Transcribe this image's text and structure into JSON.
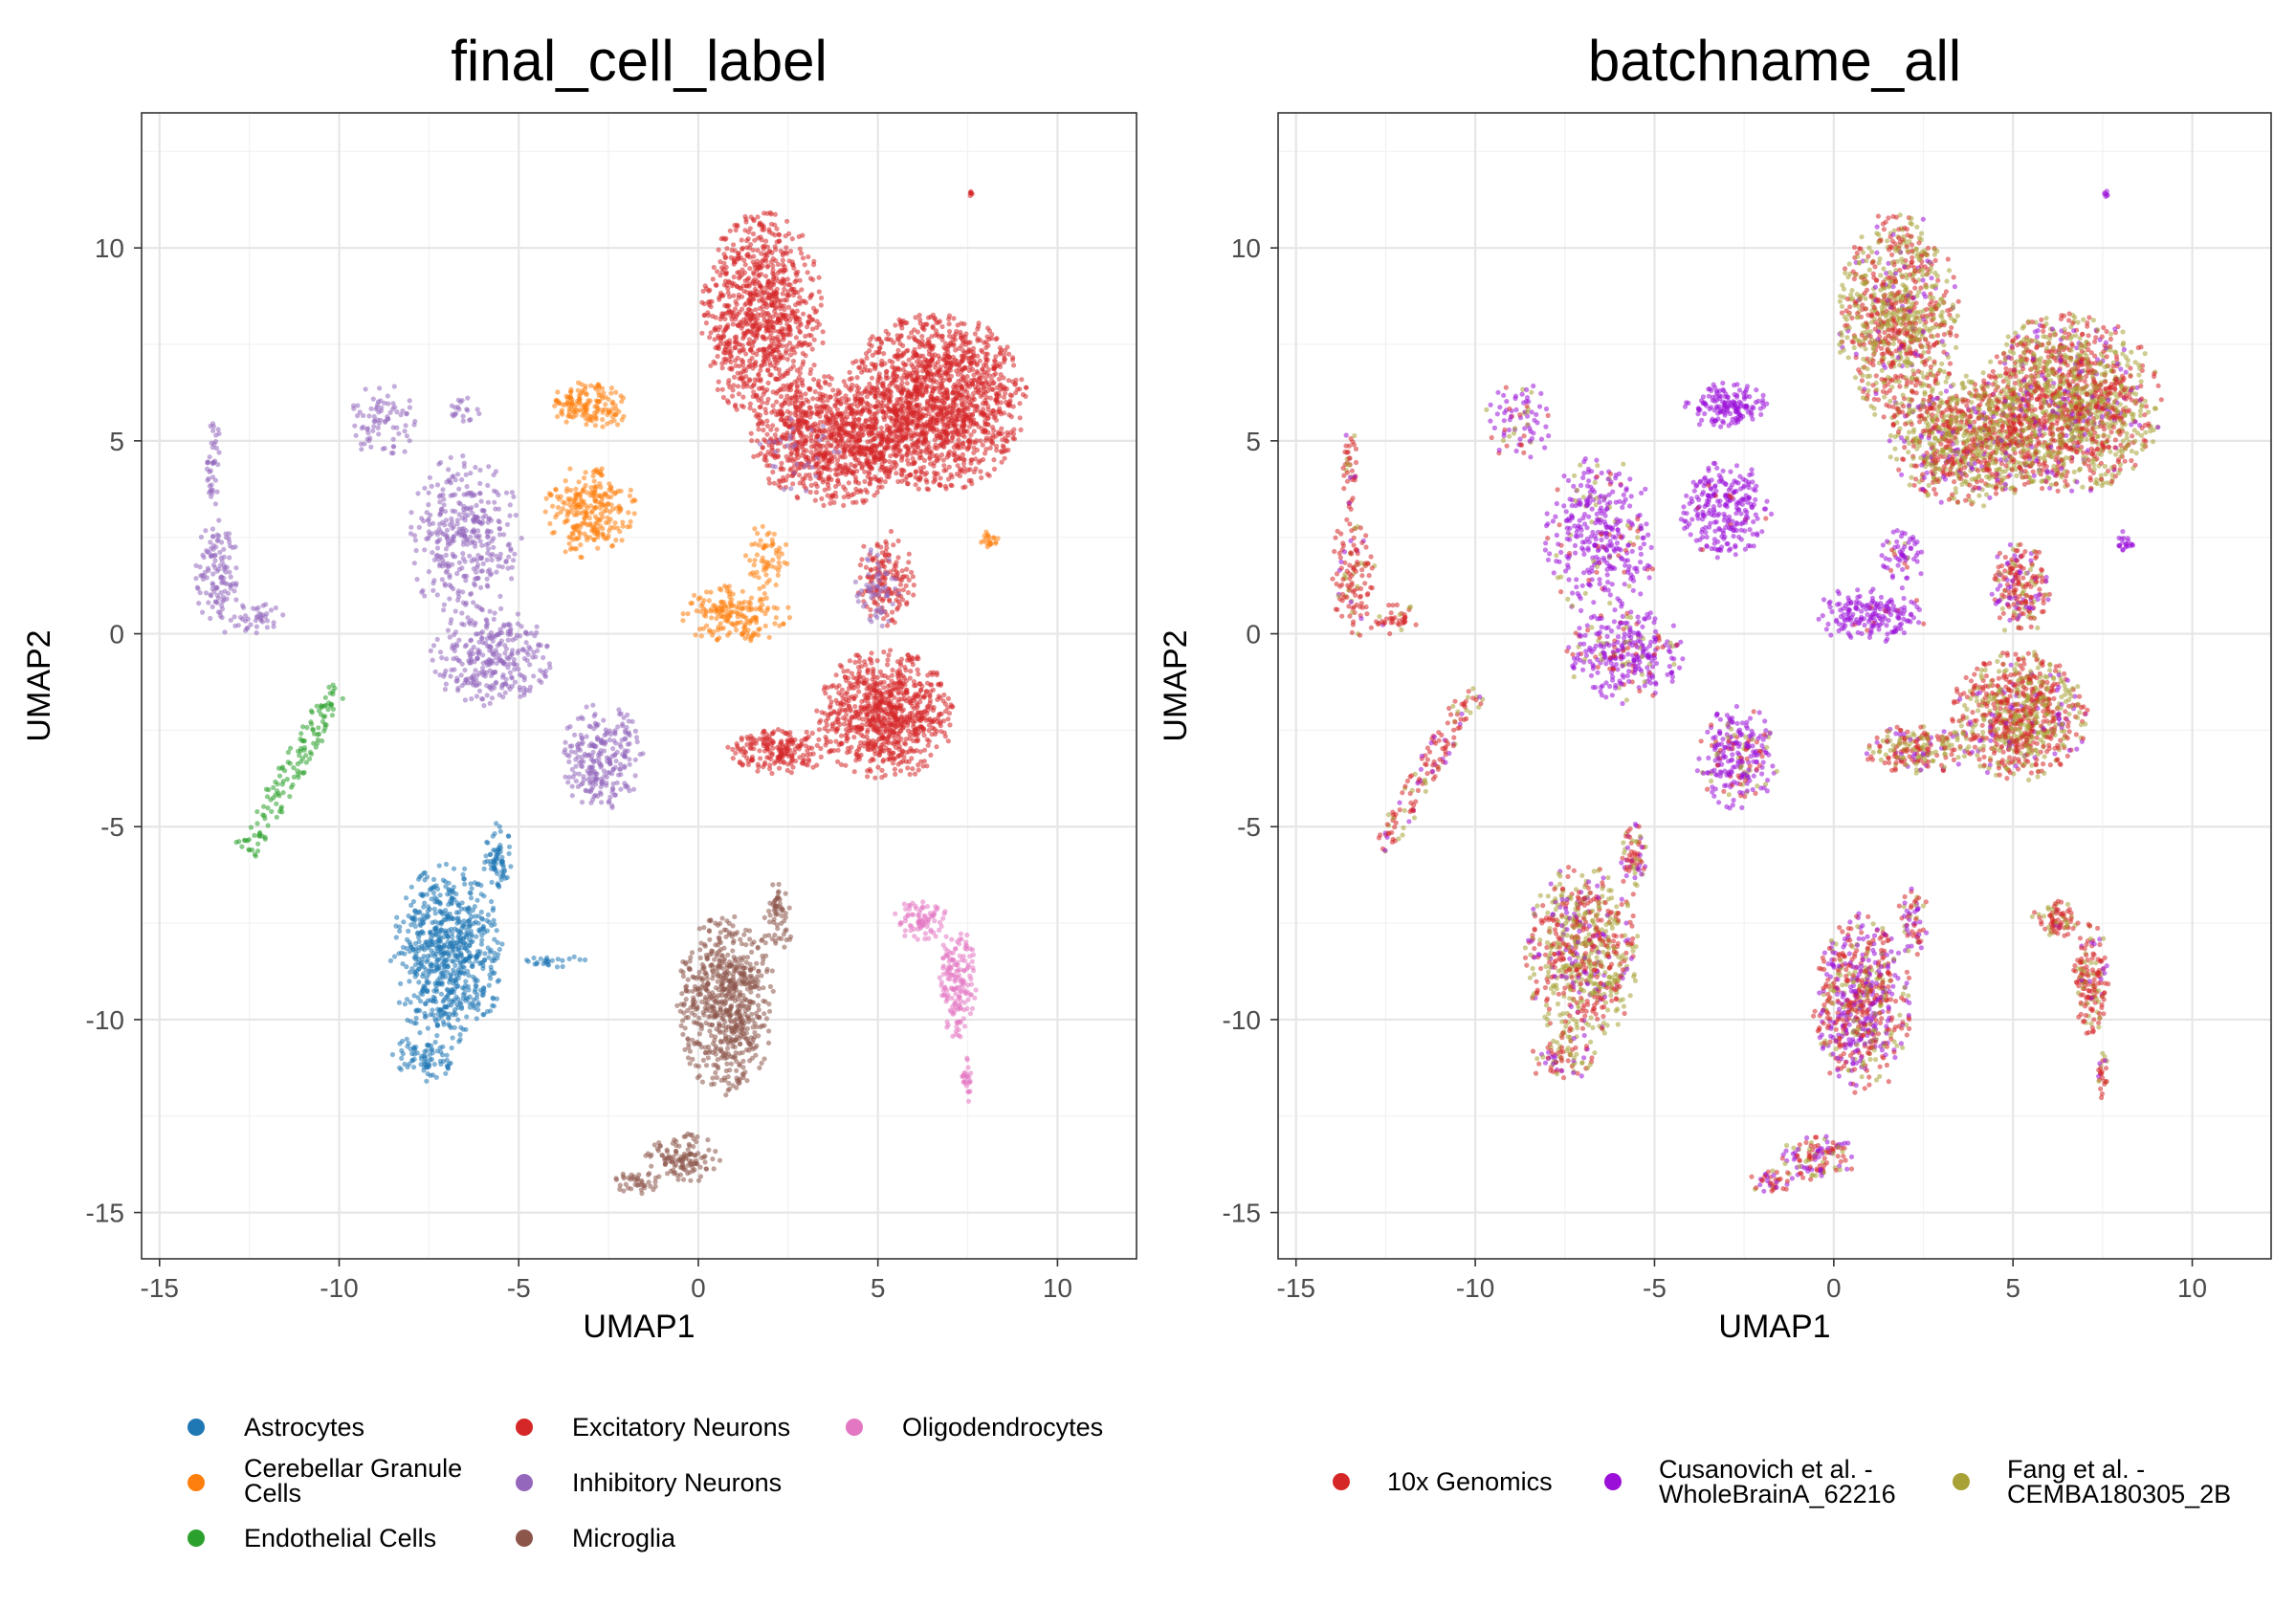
{
  "chart_data": [
    {
      "type": "scatter",
      "title": "final_cell_label",
      "xlabel": "UMAP1",
      "ylabel": "UMAP2",
      "xlim": [
        -15.5,
        12.2
      ],
      "ylim": [
        -16.2,
        13.5
      ],
      "xticks": [
        -15,
        -10,
        -5,
        0,
        5,
        10
      ],
      "yticks": [
        -15,
        -10,
        -5,
        0,
        5,
        10
      ],
      "xtick_labels": [
        "-15",
        "-10",
        "-5",
        "0",
        "5",
        "10"
      ],
      "ytick_labels": [
        "-15",
        "-10",
        "-5",
        "0",
        "5",
        "10"
      ],
      "grid": true,
      "legend": "bottom",
      "series": [
        {
          "name": "Astrocytes",
          "color": "#1f77b4",
          "clusters": [
            {
              "cx": -7.0,
              "cy": -8.3,
              "rx": 1.5,
              "ry": 2.2,
              "n": 700
            },
            {
              "cx": -5.6,
              "cy": -5.8,
              "rx": 0.4,
              "ry": 0.9,
              "n": 70
            },
            {
              "cx": -7.6,
              "cy": -11.0,
              "rx": 0.9,
              "ry": 0.6,
              "n": 80
            },
            {
              "cx": -4.0,
              "cy": -8.5,
              "rx": 0.9,
              "ry": 0.15,
              "n": 25
            }
          ]
        },
        {
          "name": "Cerebellar Granule Cells",
          "color": "#ff7f0e",
          "clusters": [
            {
              "cx": -3.0,
              "cy": 5.9,
              "rx": 1.1,
              "ry": 0.6,
              "n": 150
            },
            {
              "cx": -3.0,
              "cy": 3.2,
              "rx": 1.2,
              "ry": 1.2,
              "n": 250
            },
            {
              "cx": 1.0,
              "cy": 0.5,
              "rx": 1.5,
              "ry": 0.7,
              "n": 180
            },
            {
              "cx": 1.9,
              "cy": 2.0,
              "rx": 0.6,
              "ry": 0.8,
              "n": 60
            },
            {
              "cx": 8.1,
              "cy": 2.4,
              "rx": 0.25,
              "ry": 0.25,
              "n": 20
            }
          ]
        },
        {
          "name": "Endothelial Cells",
          "color": "#2ca02c",
          "line": {
            "x1": -12.6,
            "y1": -5.6,
            "x2": -10.0,
            "y2": -1.4,
            "w": 0.35,
            "n": 140
          }
        },
        {
          "name": "Excitatory Neurons",
          "color": "#d62728",
          "clusters": [
            {
              "cx": 1.8,
              "cy": 8.2,
              "rx": 1.6,
              "ry": 2.6,
              "n": 900
            },
            {
              "cx": 6.6,
              "cy": 6.0,
              "rx": 2.4,
              "ry": 2.2,
              "n": 1500
            },
            {
              "cx": 3.8,
              "cy": 5.0,
              "rx": 2.2,
              "ry": 1.6,
              "n": 900
            },
            {
              "cx": 5.2,
              "cy": -2.1,
              "rx": 1.8,
              "ry": 1.6,
              "n": 800
            },
            {
              "cx": 2.3,
              "cy": -3.0,
              "rx": 1.4,
              "ry": 0.6,
              "n": 200
            },
            {
              "cx": 5.2,
              "cy": 1.4,
              "rx": 0.8,
              "ry": 1.2,
              "n": 150
            },
            {
              "cx": 7.6,
              "cy": 11.4,
              "rx": 0.05,
              "ry": 0.08,
              "n": 6
            }
          ]
        },
        {
          "name": "Inhibitory Neurons",
          "color": "#9467bd",
          "clusters": [
            {
              "cx": -13.4,
              "cy": 1.5,
              "rx": 0.6,
              "ry": 1.5,
              "n": 120
            },
            {
              "cx": -13.5,
              "cy": 4.4,
              "rx": 0.2,
              "ry": 1.2,
              "n": 40
            },
            {
              "cx": -12.3,
              "cy": 0.4,
              "rx": 0.7,
              "ry": 0.4,
              "n": 40
            },
            {
              "cx": -6.5,
              "cy": 2.5,
              "rx": 1.5,
              "ry": 2.0,
              "n": 350
            },
            {
              "cx": -8.8,
              "cy": 5.5,
              "rx": 0.9,
              "ry": 1.0,
              "n": 80
            },
            {
              "cx": -5.8,
              "cy": -0.6,
              "rx": 1.6,
              "ry": 1.2,
              "n": 300
            },
            {
              "cx": -2.7,
              "cy": -3.2,
              "rx": 1.1,
              "ry": 1.3,
              "n": 250
            },
            {
              "cx": -6.5,
              "cy": 5.8,
              "rx": 0.5,
              "ry": 0.3,
              "n": 20
            },
            {
              "cx": 5.0,
              "cy": 1.2,
              "rx": 0.6,
              "ry": 1.0,
              "n": 60
            },
            {
              "cx": 2.8,
              "cy": 4.6,
              "rx": 1.2,
              "ry": 1.0,
              "n": 30
            }
          ]
        },
        {
          "name": "Microglia",
          "color": "#8c564b",
          "clusters": [
            {
              "cx": 0.8,
              "cy": -9.6,
              "rx": 1.3,
              "ry": 2.2,
              "n": 650
            },
            {
              "cx": -0.4,
              "cy": -13.6,
              "rx": 1.0,
              "ry": 0.6,
              "n": 120
            },
            {
              "cx": 2.2,
              "cy": -7.4,
              "rx": 0.4,
              "ry": 0.9,
              "n": 60
            },
            {
              "cx": -1.7,
              "cy": -14.2,
              "rx": 0.6,
              "ry": 0.3,
              "n": 40
            }
          ]
        },
        {
          "name": "Oligodendrocytes",
          "color": "#e377c2",
          "clusters": [
            {
              "cx": 7.2,
              "cy": -9.0,
              "rx": 0.5,
              "ry": 1.4,
              "n": 160
            },
            {
              "cx": 6.2,
              "cy": -7.4,
              "rx": 0.7,
              "ry": 0.5,
              "n": 80
            },
            {
              "cx": 7.5,
              "cy": -11.5,
              "rx": 0.15,
              "ry": 0.6,
              "n": 25
            }
          ]
        }
      ]
    },
    {
      "type": "scatter",
      "title": "batchname_all",
      "xlabel": "UMAP1",
      "ylabel": "UMAP2",
      "xlim": [
        -15.5,
        12.2
      ],
      "ylim": [
        -16.2,
        13.5
      ],
      "xticks": [
        -15,
        -10,
        -5,
        0,
        5,
        10
      ],
      "yticks": [
        -15,
        -10,
        -5,
        0,
        5,
        10
      ],
      "xtick_labels": [
        "-15",
        "-10",
        "-5",
        "0",
        "5",
        "10"
      ],
      "ytick_labels": [
        "-15",
        "-10",
        "-5",
        "0",
        "5",
        "10"
      ],
      "grid": true,
      "legend": "bottom",
      "series": [
        {
          "name": "10x Genomics",
          "legend_lines": [
            "10x Genomics"
          ],
          "color": "#d62728"
        },
        {
          "name": "Cusanovich et al. - WholeBrainA_62216",
          "legend_lines": [
            "Cusanovich et al. -",
            "WholeBrainA_62216"
          ],
          "color": "#9b10d8"
        },
        {
          "name": "Fang et al. - CEMBA180305_2B",
          "legend_lines": [
            "Fang et al. -",
            "CEMBA180305_2B"
          ],
          "color": "#a8a236"
        }
      ],
      "regions": [
        {
          "cx": 1.8,
          "cy": 8.2,
          "rx": 1.6,
          "ry": 2.6,
          "n": 900,
          "w": [
            0.45,
            0.05,
            0.5
          ]
        },
        {
          "cx": 6.6,
          "cy": 6.0,
          "rx": 2.4,
          "ry": 2.2,
          "n": 1500,
          "w": [
            0.45,
            0.1,
            0.45
          ]
        },
        {
          "cx": 3.8,
          "cy": 5.0,
          "rx": 2.2,
          "ry": 1.6,
          "n": 900,
          "w": [
            0.4,
            0.1,
            0.5
          ]
        },
        {
          "cx": 5.2,
          "cy": -2.1,
          "rx": 1.8,
          "ry": 1.6,
          "n": 800,
          "w": [
            0.5,
            0.1,
            0.4
          ]
        },
        {
          "cx": 2.3,
          "cy": -3.0,
          "rx": 1.4,
          "ry": 0.6,
          "n": 200,
          "w": [
            0.45,
            0.1,
            0.45
          ]
        },
        {
          "cx": 5.2,
          "cy": 1.2,
          "rx": 0.8,
          "ry": 1.2,
          "n": 200,
          "w": [
            0.55,
            0.25,
            0.2
          ]
        },
        {
          "cx": 7.6,
          "cy": 11.4,
          "rx": 0.05,
          "ry": 0.08,
          "n": 6,
          "w": [
            0.2,
            0.8,
            0.0
          ]
        },
        {
          "cx": -3.0,
          "cy": 5.9,
          "rx": 1.1,
          "ry": 0.6,
          "n": 150,
          "w": [
            0.0,
            1.0,
            0.0
          ]
        },
        {
          "cx": -3.0,
          "cy": 3.2,
          "rx": 1.2,
          "ry": 1.2,
          "n": 250,
          "w": [
            0.03,
            0.97,
            0.0
          ]
        },
        {
          "cx": 1.0,
          "cy": 0.5,
          "rx": 1.5,
          "ry": 0.7,
          "n": 180,
          "w": [
            0.1,
            0.9,
            0.0
          ]
        },
        {
          "cx": 1.9,
          "cy": 2.0,
          "rx": 0.6,
          "ry": 0.8,
          "n": 60,
          "w": [
            0.1,
            0.85,
            0.05
          ]
        },
        {
          "cx": 8.1,
          "cy": 2.4,
          "rx": 0.25,
          "ry": 0.25,
          "n": 20,
          "w": [
            0.0,
            1.0,
            0.0
          ]
        },
        {
          "cx": -13.4,
          "cy": 1.5,
          "rx": 0.6,
          "ry": 1.5,
          "n": 120,
          "w": [
            0.8,
            0.05,
            0.15
          ]
        },
        {
          "cx": -13.5,
          "cy": 4.4,
          "rx": 0.2,
          "ry": 1.2,
          "n": 40,
          "w": [
            0.8,
            0.05,
            0.15
          ]
        },
        {
          "cx": -12.3,
          "cy": 0.4,
          "rx": 0.7,
          "ry": 0.4,
          "n": 40,
          "w": [
            0.8,
            0.05,
            0.15
          ]
        },
        {
          "cx": -6.5,
          "cy": 2.5,
          "rx": 1.5,
          "ry": 2.0,
          "n": 350,
          "w": [
            0.1,
            0.8,
            0.1
          ]
        },
        {
          "cx": -8.8,
          "cy": 5.5,
          "rx": 0.9,
          "ry": 1.0,
          "n": 80,
          "w": [
            0.2,
            0.6,
            0.2
          ]
        },
        {
          "cx": -5.8,
          "cy": -0.6,
          "rx": 1.6,
          "ry": 1.2,
          "n": 300,
          "w": [
            0.1,
            0.8,
            0.1
          ]
        },
        {
          "cx": -2.7,
          "cy": -3.2,
          "rx": 1.1,
          "ry": 1.3,
          "n": 250,
          "w": [
            0.15,
            0.7,
            0.15
          ]
        },
        {
          "cx": -7.0,
          "cy": -8.3,
          "rx": 1.5,
          "ry": 2.2,
          "n": 700,
          "w": [
            0.4,
            0.15,
            0.45
          ]
        },
        {
          "cx": -5.6,
          "cy": -5.8,
          "rx": 0.4,
          "ry": 0.9,
          "n": 70,
          "w": [
            0.4,
            0.3,
            0.3
          ]
        },
        {
          "cx": -7.6,
          "cy": -11.0,
          "rx": 0.9,
          "ry": 0.6,
          "n": 80,
          "w": [
            0.4,
            0.2,
            0.4
          ]
        },
        {
          "cx": 0.8,
          "cy": -9.6,
          "rx": 1.3,
          "ry": 2.2,
          "n": 650,
          "w": [
            0.4,
            0.4,
            0.2
          ]
        },
        {
          "cx": -0.4,
          "cy": -13.6,
          "rx": 1.0,
          "ry": 0.6,
          "n": 120,
          "w": [
            0.5,
            0.3,
            0.2
          ]
        },
        {
          "cx": 2.2,
          "cy": -7.4,
          "rx": 0.4,
          "ry": 0.9,
          "n": 60,
          "w": [
            0.4,
            0.4,
            0.2
          ]
        },
        {
          "cx": -1.7,
          "cy": -14.2,
          "rx": 0.6,
          "ry": 0.3,
          "n": 40,
          "w": [
            0.5,
            0.3,
            0.2
          ]
        },
        {
          "cx": 7.2,
          "cy": -9.0,
          "rx": 0.5,
          "ry": 1.4,
          "n": 160,
          "w": [
            0.7,
            0.1,
            0.2
          ]
        },
        {
          "cx": 6.2,
          "cy": -7.4,
          "rx": 0.7,
          "ry": 0.5,
          "n": 80,
          "w": [
            0.7,
            0.1,
            0.2
          ]
        },
        {
          "cx": 7.5,
          "cy": -11.5,
          "rx": 0.15,
          "ry": 0.6,
          "n": 25,
          "w": [
            0.7,
            0.1,
            0.2
          ]
        }
      ],
      "line_regions": [
        {
          "x1": -12.6,
          "y1": -5.6,
          "x2": -10.0,
          "y2": -1.4,
          "w_width": 0.35,
          "n": 140,
          "w": [
            0.6,
            0.15,
            0.25
          ]
        }
      ]
    }
  ]
}
